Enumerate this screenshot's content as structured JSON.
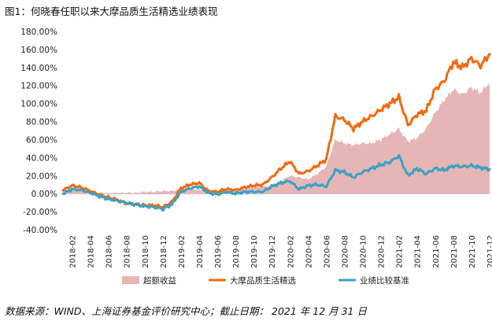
{
  "figure": {
    "title": "图1：何晓春任职以来大摩品质生活精选业绩表现",
    "source": "数据来源：WIND、上海证券基金评价研究中心；截止日期： 2021 年 12 月 31 日"
  },
  "chart_data": {
    "type": "line",
    "title": "",
    "xlabel": "",
    "ylabel": "",
    "ylim": [
      -40,
      180
    ],
    "yticks": [
      -40,
      -20,
      0,
      20,
      40,
      60,
      80,
      100,
      120,
      140,
      160,
      180
    ],
    "ytick_labels": [
      "-40.00%",
      "-20.00%",
      "0.00%",
      "20.00%",
      "40.00%",
      "60.00%",
      "80.00%",
      "100.00%",
      "120.00%",
      "140.00%",
      "160.00%",
      "180.00%"
    ],
    "x_tick_labels": [
      "2018-02",
      "2018-04",
      "2018-06",
      "2018-08",
      "2018-10",
      "2018-12",
      "2019-02",
      "2019-04",
      "2019-06",
      "2019-08",
      "2019-10",
      "2019-12",
      "2020-02",
      "2020-04",
      "2020-06",
      "2020-08",
      "2020-10",
      "2020-12",
      "2021-02",
      "2021-04",
      "2021-06",
      "2021-08",
      "2021-10",
      "2021-12"
    ],
    "x": [
      "2018-01",
      "2018-02",
      "2018-03",
      "2018-04",
      "2018-05",
      "2018-06",
      "2018-07",
      "2018-08",
      "2018-09",
      "2018-10",
      "2018-11",
      "2018-12",
      "2019-01",
      "2019-02",
      "2019-03",
      "2019-04",
      "2019-05",
      "2019-06",
      "2019-07",
      "2019-08",
      "2019-09",
      "2019-10",
      "2019-11",
      "2019-12",
      "2020-01",
      "2020-02",
      "2020-03",
      "2020-04",
      "2020-05",
      "2020-06",
      "2020-07",
      "2020-08",
      "2020-09",
      "2020-10",
      "2020-11",
      "2020-12",
      "2021-01",
      "2021-02",
      "2021-03",
      "2021-04",
      "2021-05",
      "2021-06",
      "2021-07",
      "2021-08",
      "2021-09",
      "2021-10",
      "2021-11",
      "2021-12"
    ],
    "series": [
      {
        "name": "超额收益",
        "kind": "area",
        "color": "#e6b6b6",
        "values": [
          4,
          4,
          3,
          2,
          1,
          0,
          1,
          1,
          1,
          2,
          2,
          3,
          3,
          5,
          5,
          4,
          2,
          3,
          3,
          4,
          5,
          7,
          8,
          9,
          14,
          20,
          18,
          16,
          22,
          30,
          60,
          56,
          54,
          56,
          56,
          60,
          66,
          72,
          58,
          62,
          72,
          90,
          104,
          116,
          110,
          118,
          112,
          124
        ]
      },
      {
        "name": "大摩品质生活精选",
        "kind": "line",
        "color": "#f26a10",
        "values": [
          4,
          9,
          7,
          3,
          -1,
          -4,
          -7,
          -11,
          -12,
          -13,
          -13,
          -15,
          -9,
          6,
          10,
          12,
          3,
          2,
          5,
          4,
          7,
          9,
          10,
          18,
          28,
          36,
          22,
          25,
          31,
          38,
          86,
          82,
          72,
          80,
          86,
          93,
          100,
          107,
          76,
          88,
          92,
          116,
          125,
          146,
          140,
          150,
          142,
          155
        ]
      },
      {
        "name": "业绩比较基准",
        "kind": "line",
        "color": "#3ba2c2",
        "values": [
          0,
          5,
          4,
          1,
          -3,
          -6,
          -8,
          -10,
          -12,
          -14,
          -15,
          -17,
          -12,
          2,
          6,
          8,
          1,
          -1,
          2,
          0,
          2,
          2,
          2,
          8,
          12,
          14,
          5,
          9,
          10,
          8,
          26,
          24,
          18,
          24,
          28,
          32,
          35,
          42,
          20,
          28,
          22,
          28,
          26,
          31,
          30,
          31,
          29,
          27
        ]
      }
    ],
    "legend": {
      "position": "bottom",
      "items": [
        "超额收益",
        "大摩品质生活精选",
        "业绩比较基准"
      ]
    },
    "grid": false
  }
}
